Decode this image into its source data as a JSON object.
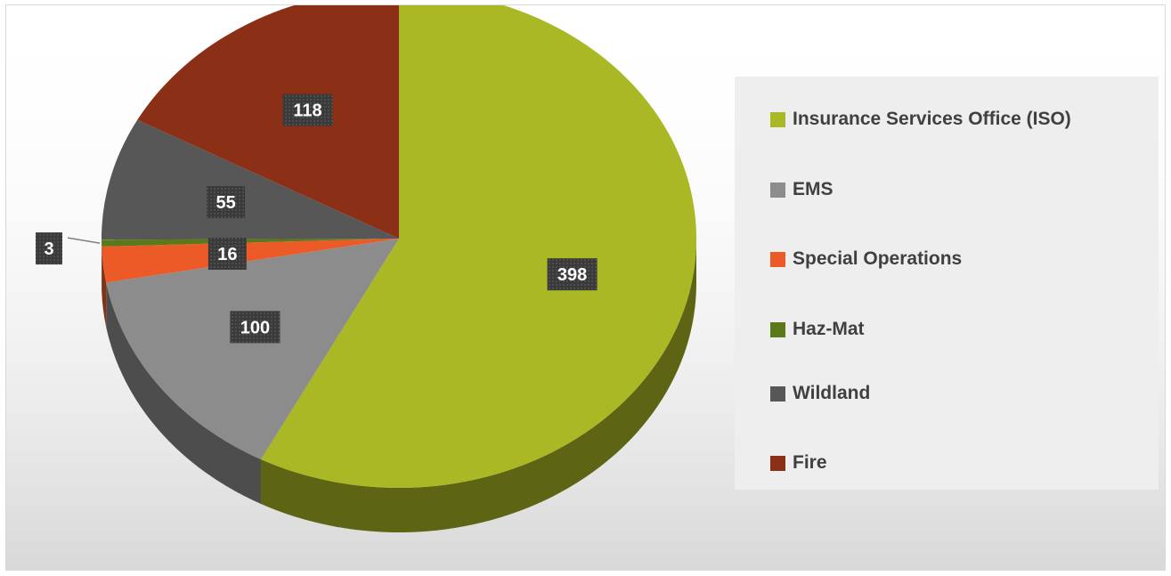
{
  "chart_data": {
    "type": "pie",
    "style": "3d",
    "legend_position": "right",
    "data_labels": "value",
    "categories": [
      "Insurance Services Office (ISO)",
      "EMS",
      "Special Operations",
      "Haz-Mat",
      "Wildland",
      "Fire"
    ],
    "values": [
      398,
      100,
      16,
      3,
      55,
      118
    ],
    "colors": [
      "#a9b824",
      "#8c8c8c",
      "#ec5a27",
      "#5a7a1a",
      "#575757",
      "#8b2f16"
    ]
  }
}
